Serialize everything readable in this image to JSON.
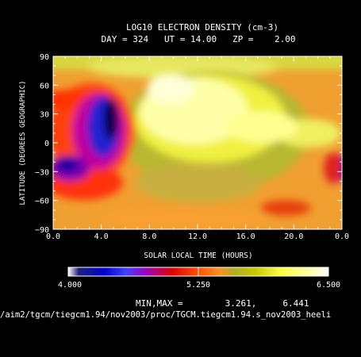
{
  "chart_data": {
    "type": "heatmap",
    "title": "LOG10 ELECTRON DENSITY (cm-3)",
    "subtitle": "DAY = 324   UT = 14.00   ZP =    2.00",
    "xlabel": "SOLAR LOCAL TIME (HOURS)",
    "ylabel": "LATITUDE (DEGREES GEOGRAPHIC)",
    "xlim": [
      0,
      24
    ],
    "ylim": [
      -90,
      90
    ],
    "x_tick_labels": [
      "0.0",
      "4.0",
      "8.0",
      "12.0",
      "16.0",
      "20.0",
      "0.0"
    ],
    "y_tick_labels": [
      "90",
      "60",
      "30",
      "0",
      "−30",
      "−60",
      "−90"
    ],
    "colorbar": {
      "min_label": "4.000",
      "mid_label": "5.250",
      "max_label": "6.500",
      "min": 4.0,
      "max": 6.5
    },
    "minmax_text": "MIN,MAX =        3.261,     6.441",
    "minmax": [
      3.261,
      6.441
    ],
    "file_path": "/aim2/tgcm/tiegcm1.94/nov2003/proc/TGCM.tiegcm1.94.s_nov2003_heeli",
    "grid": false
  }
}
